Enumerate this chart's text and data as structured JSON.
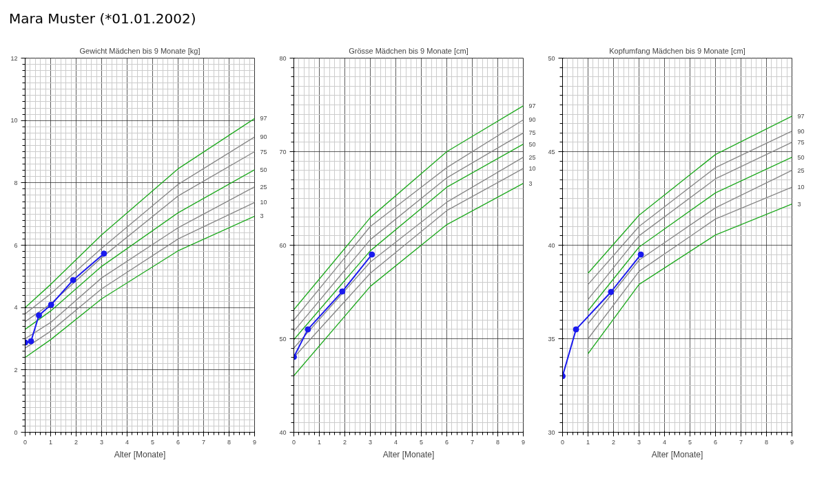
{
  "chart_data": [
    {
      "type": "line",
      "title": "Gewicht Mädchen bis 9 Monate [kg]",
      "xlabel": "Alter [Monate]",
      "annotations": [
        "Mara Muster (*01.01.2002)"
      ],
      "xlim": [
        0,
        9
      ],
      "ylim": [
        0,
        12
      ],
      "xticks": [
        0,
        1,
        2,
        3,
        4,
        5,
        6,
        7,
        8,
        9
      ],
      "yticks": [
        0,
        2,
        4,
        6,
        8,
        10,
        12
      ],
      "grid": true,
      "line_style": "solid",
      "series": [
        {
          "name": "97",
          "color": "#22aa22",
          "x": [
            0,
            1,
            3,
            6,
            9
          ],
          "values": [
            4.0,
            4.74,
            6.33,
            8.45,
            10.06
          ]
        },
        {
          "name": "90",
          "color": "#888888",
          "x": [
            0,
            1,
            3,
            6,
            9
          ],
          "values": [
            3.8,
            4.44,
            5.9,
            7.95,
            9.47
          ]
        },
        {
          "name": "75",
          "color": "#888888",
          "x": [
            0,
            1,
            3,
            6,
            9
          ],
          "values": [
            3.55,
            4.12,
            5.6,
            7.58,
            9.0
          ]
        },
        {
          "name": "50",
          "color": "#22aa22",
          "x": [
            0,
            1,
            3,
            6,
            9
          ],
          "values": [
            3.3,
            3.89,
            5.32,
            7.04,
            8.42
          ]
        },
        {
          "name": "25",
          "color": "#888888",
          "x": [
            0,
            1,
            3,
            6,
            9
          ],
          "values": [
            3.0,
            3.52,
            4.95,
            6.56,
            7.87
          ]
        },
        {
          "name": "10",
          "color": "#888888",
          "x": [
            0,
            1,
            3,
            6,
            9
          ],
          "values": [
            2.7,
            3.24,
            4.6,
            6.2,
            7.37
          ]
        },
        {
          "name": "3",
          "color": "#22aa22",
          "x": [
            0,
            1,
            3,
            6,
            9
          ],
          "values": [
            2.4,
            2.97,
            4.28,
            5.82,
            6.93
          ]
        },
        {
          "color": "#1a1aee",
          "marker": "circle",
          "x": [
            0,
            0.23,
            0.54,
            1.02,
            1.88,
            3.09
          ],
          "values": [
            2.88,
            2.92,
            3.75,
            4.09,
            4.88,
            5.73
          ]
        }
      ]
    },
    {
      "type": "line",
      "title": "Grösse Mädchen bis 9 Monate [cm]",
      "xlabel": "Alter [Monate]",
      "xlim": [
        0,
        9
      ],
      "ylim": [
        40,
        80
      ],
      "xticks": [
        0,
        1,
        2,
        3,
        4,
        5,
        6,
        7,
        8,
        9
      ],
      "yticks": [
        40,
        50,
        60,
        70,
        80
      ],
      "grid": true,
      "line_style": "solid",
      "series": [
        {
          "name": "97",
          "color": "#22aa22",
          "x": [
            0,
            3,
            6,
            9
          ],
          "values": [
            53.1,
            62.95,
            70.0,
            74.9
          ]
        },
        {
          "name": "90",
          "color": "#888888",
          "x": [
            0,
            3,
            6,
            9
          ],
          "values": [
            52.0,
            62.0,
            68.3,
            73.4
          ]
        },
        {
          "name": "75",
          "color": "#888888",
          "x": [
            0,
            3,
            6,
            9
          ],
          "values": [
            50.8,
            60.6,
            67.2,
            72.0
          ]
        },
        {
          "name": "50",
          "color": "#22aa22",
          "x": [
            0,
            3,
            6,
            9
          ],
          "values": [
            49.9,
            59.4,
            66.2,
            70.8
          ]
        },
        {
          "name": "25",
          "color": "#888888",
          "x": [
            0,
            3,
            6,
            9
          ],
          "values": [
            49.0,
            58.2,
            64.6,
            69.4
          ]
        },
        {
          "name": "10",
          "color": "#888888",
          "x": [
            0,
            3,
            6,
            9
          ],
          "values": [
            48.0,
            57.0,
            63.7,
            68.2
          ]
        },
        {
          "name": "3",
          "color": "#22aa22",
          "x": [
            0,
            3,
            6,
            9
          ],
          "values": [
            46.05,
            55.6,
            62.2,
            66.6
          ]
        },
        {
          "color": "#1a1aee",
          "marker": "circle",
          "x": [
            0,
            0.55,
            1.9,
            3.06
          ],
          "values": [
            48.05,
            51.0,
            55.05,
            59.0
          ]
        }
      ]
    },
    {
      "type": "line",
      "title": "Kopfumfang Mädchen bis 9 Monate [cm]",
      "xlabel": "Alter [Monate]",
      "xlim": [
        0,
        9
      ],
      "ylim": [
        30,
        50
      ],
      "xticks": [
        0,
        1,
        2,
        3,
        4,
        5,
        6,
        7,
        8,
        9
      ],
      "yticks": [
        30,
        35,
        40,
        45,
        50
      ],
      "grid": true,
      "line_style": "solid",
      "series": [
        {
          "name": "97",
          "color": "#22aa22",
          "x": [
            1,
            3,
            6,
            9
          ],
          "values": [
            38.5,
            41.6,
            44.85,
            46.9
          ]
        },
        {
          "name": "90",
          "color": "#888888",
          "x": [
            1,
            3,
            6,
            9
          ],
          "values": [
            37.9,
            41.0,
            44.15,
            46.1
          ]
        },
        {
          "name": "75",
          "color": "#888888",
          "x": [
            1,
            3,
            6,
            9
          ],
          "values": [
            37.1,
            40.5,
            43.55,
            45.5
          ]
        },
        {
          "name": "50",
          "color": "#22aa22",
          "x": [
            1,
            3,
            6,
            9
          ],
          "values": [
            36.5,
            39.9,
            42.8,
            44.7
          ]
        },
        {
          "name": "25",
          "color": "#888888",
          "x": [
            1,
            3,
            6,
            9
          ],
          "values": [
            35.8,
            39.2,
            42.0,
            44.0
          ]
        },
        {
          "name": "10",
          "color": "#888888",
          "x": [
            1,
            3,
            6,
            9
          ],
          "values": [
            35.0,
            38.6,
            41.4,
            43.1
          ]
        },
        {
          "name": "3",
          "color": "#22aa22",
          "x": [
            1,
            3,
            6,
            9
          ],
          "values": [
            34.2,
            37.9,
            40.55,
            42.2
          ]
        },
        {
          "color": "#1a1aee",
          "marker": "circle",
          "x": [
            0,
            0.53,
            1.9,
            3.07
          ],
          "values": [
            33.0,
            35.5,
            37.5,
            39.5
          ]
        }
      ]
    }
  ]
}
